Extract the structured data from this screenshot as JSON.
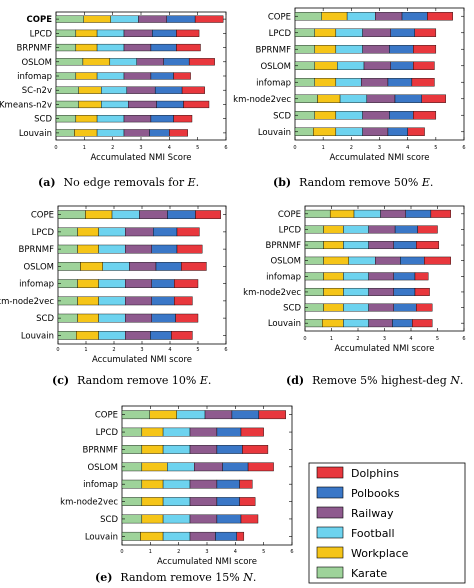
{
  "colors": {
    "Karate": "#9ed39a",
    "Workplace": "#f5c518",
    "Football": "#6dd3ef",
    "Railway": "#8e5a8e",
    "Polbooks": "#3a77c7",
    "Dolphins": "#e8373d"
  },
  "legend": {
    "items": [
      "Dolphins",
      "Polbooks",
      "Railway",
      "Football",
      "Workplace",
      "Karate"
    ]
  },
  "chart_data": [
    {
      "type": "bar",
      "orientation": "horizontal-stacked",
      "caption": "(a)   No edge removals for E.",
      "caption_label": "(a)",
      "caption_text": "No edge removals for ",
      "caption_var": "E",
      "caption_end": ".",
      "xlabel": "Accumulated NMI Score",
      "xlim": [
        0,
        6
      ],
      "xticks": [
        "0",
        "1",
        "2",
        "3",
        "4",
        "5",
        "6"
      ],
      "categories": [
        "COPE",
        "LPCD",
        "BRPNMF",
        "OSLOM",
        "infomap",
        "SC-n2v",
        "Kmeans-n2v",
        "SCD",
        "Louvain"
      ],
      "series_order": [
        "Karate",
        "Workplace",
        "Football",
        "Railway",
        "Polbooks",
        "Dolphins"
      ],
      "values": [
        [
          0.98,
          0.95,
          0.98,
          1.0,
          1.0,
          0.99
        ],
        [
          0.7,
          0.75,
          0.95,
          1.0,
          0.85,
          0.8
        ],
        [
          0.7,
          0.75,
          0.95,
          0.95,
          0.9,
          0.85
        ],
        [
          0.95,
          0.95,
          0.95,
          0.95,
          0.9,
          0.9
        ],
        [
          0.7,
          0.75,
          0.95,
          0.95,
          0.8,
          0.6
        ],
        [
          0.8,
          0.8,
          0.9,
          1.0,
          0.95,
          0.8
        ],
        [
          0.8,
          0.8,
          0.95,
          1.0,
          0.95,
          0.9
        ],
        [
          0.7,
          0.75,
          0.95,
          0.95,
          0.8,
          0.65
        ],
        [
          0.65,
          0.8,
          0.95,
          0.9,
          0.7,
          0.65
        ]
      ]
    },
    {
      "type": "bar",
      "orientation": "horizontal-stacked",
      "caption_label": "(b)",
      "caption_text": "Random remove 50% ",
      "caption_var": "E",
      "caption_end": ".",
      "xlabel": "Accumulated NMI score",
      "xlim": [
        0,
        6
      ],
      "xticks": [
        "0",
        "1",
        "2",
        "3",
        "4",
        "5",
        "6"
      ],
      "categories": [
        "COPE",
        "LPCD",
        "BPRNMF",
        "OSLOM",
        "infomap",
        "km-node2vec",
        "SCD",
        "Louvain"
      ],
      "series_order": [
        "Karate",
        "Workplace",
        "Football",
        "Railway",
        "Polbooks",
        "Dolphins"
      ],
      "values": [
        [
          0.95,
          0.9,
          1.0,
          0.95,
          0.9,
          0.9
        ],
        [
          0.7,
          0.75,
          0.95,
          1.0,
          0.85,
          0.75
        ],
        [
          0.7,
          0.75,
          0.95,
          0.95,
          0.85,
          0.8
        ],
        [
          0.7,
          0.8,
          0.95,
          0.95,
          0.8,
          0.75
        ],
        [
          0.7,
          0.75,
          0.9,
          0.95,
          0.85,
          0.8
        ],
        [
          0.8,
          0.8,
          0.95,
          1.0,
          0.95,
          0.85
        ],
        [
          0.7,
          0.75,
          0.95,
          0.95,
          0.85,
          0.8
        ],
        [
          0.65,
          0.8,
          0.95,
          0.9,
          0.7,
          0.6
        ]
      ]
    },
    {
      "type": "bar",
      "orientation": "horizontal-stacked",
      "caption_label": "(c)",
      "caption_text": "Random remove 10% ",
      "caption_var": "E",
      "caption_end": ".",
      "xlabel": "Accumulated NMI score",
      "xlim": [
        0,
        6
      ],
      "xticks": [
        "0",
        "1",
        "2",
        "3",
        "4",
        "5",
        "6"
      ],
      "categories": [
        "COPE",
        "LPCD",
        "BPRNMF",
        "OSLOM",
        "infomap",
        "km-node2vec",
        "SCD",
        "Louvain"
      ],
      "series_order": [
        "Karate",
        "Workplace",
        "Football",
        "Railway",
        "Polbooks",
        "Dolphins"
      ],
      "values": [
        [
          0.98,
          0.95,
          0.98,
          1.0,
          1.0,
          0.9
        ],
        [
          0.7,
          0.75,
          0.95,
          1.0,
          0.85,
          0.8
        ],
        [
          0.7,
          0.75,
          0.95,
          0.95,
          0.9,
          0.9
        ],
        [
          0.8,
          0.8,
          0.95,
          0.95,
          0.9,
          0.9
        ],
        [
          0.7,
          0.75,
          0.95,
          0.95,
          0.8,
          0.85
        ],
        [
          0.7,
          0.75,
          0.95,
          0.95,
          0.8,
          0.65
        ],
        [
          0.7,
          0.75,
          0.95,
          0.95,
          0.85,
          0.8
        ],
        [
          0.65,
          0.8,
          0.95,
          0.9,
          0.75,
          0.75
        ]
      ]
    },
    {
      "type": "bar",
      "orientation": "horizontal-stacked",
      "caption_label": "(d)",
      "caption_text": "Remove 5% highest-deg ",
      "caption_var": "N",
      "caption_end": ".",
      "xlabel": "Accumulated NMI score",
      "xlim": [
        0,
        6
      ],
      "xticks": [
        "0",
        "1",
        "2",
        "3",
        "4",
        "5",
        "6"
      ],
      "categories": [
        "COPE",
        "LPCD",
        "BPRNMF",
        "OSLOM",
        "infomap",
        "km-node2vec",
        "SCD",
        "Louvain"
      ],
      "series_order": [
        "Karate",
        "Workplace",
        "Football",
        "Railway",
        "Polbooks",
        "Dolphins"
      ],
      "values": [
        [
          0.95,
          0.9,
          1.0,
          0.95,
          0.95,
          0.75
        ],
        [
          0.7,
          0.75,
          0.95,
          1.0,
          0.85,
          0.75
        ],
        [
          0.7,
          0.75,
          0.95,
          0.95,
          0.85,
          0.85
        ],
        [
          0.7,
          0.95,
          1.0,
          0.95,
          0.9,
          1.0
        ],
        [
          0.7,
          0.75,
          0.95,
          0.95,
          0.8,
          0.5
        ],
        [
          0.7,
          0.75,
          0.95,
          0.95,
          0.8,
          0.55
        ],
        [
          0.7,
          0.75,
          0.95,
          0.95,
          0.85,
          0.6
        ],
        [
          0.65,
          0.8,
          0.95,
          0.9,
          0.75,
          0.75
        ]
      ]
    },
    {
      "type": "bar",
      "orientation": "horizontal-stacked",
      "caption_label": "(e)",
      "caption_text": "Random remove 15% ",
      "caption_var": "N",
      "caption_end": ".",
      "xlabel": "Accumulated NMI score",
      "xlim": [
        0,
        6
      ],
      "xticks": [
        "0",
        "1",
        "2",
        "3",
        "4",
        "5",
        "6"
      ],
      "categories": [
        "COPE",
        "LPCD",
        "BPRNMF",
        "OSLOM",
        "infomap",
        "km-node2vec",
        "SCD",
        "Louvain"
      ],
      "series_order": [
        "Karate",
        "Workplace",
        "Football",
        "Railway",
        "Polbooks",
        "Dolphins"
      ],
      "values": [
        [
          0.98,
          0.95,
          1.0,
          0.95,
          0.95,
          0.95
        ],
        [
          0.7,
          0.75,
          0.95,
          0.95,
          0.85,
          0.8
        ],
        [
          0.7,
          0.75,
          0.95,
          0.95,
          0.9,
          0.9
        ],
        [
          0.7,
          0.9,
          0.95,
          1.0,
          0.9,
          0.9
        ],
        [
          0.7,
          0.75,
          0.95,
          0.95,
          0.8,
          0.45
        ],
        [
          0.7,
          0.75,
          0.95,
          0.95,
          0.8,
          0.55
        ],
        [
          0.7,
          0.75,
          0.95,
          0.95,
          0.85,
          0.6
        ],
        [
          0.65,
          0.8,
          0.95,
          0.9,
          0.75,
          0.25
        ]
      ]
    }
  ]
}
